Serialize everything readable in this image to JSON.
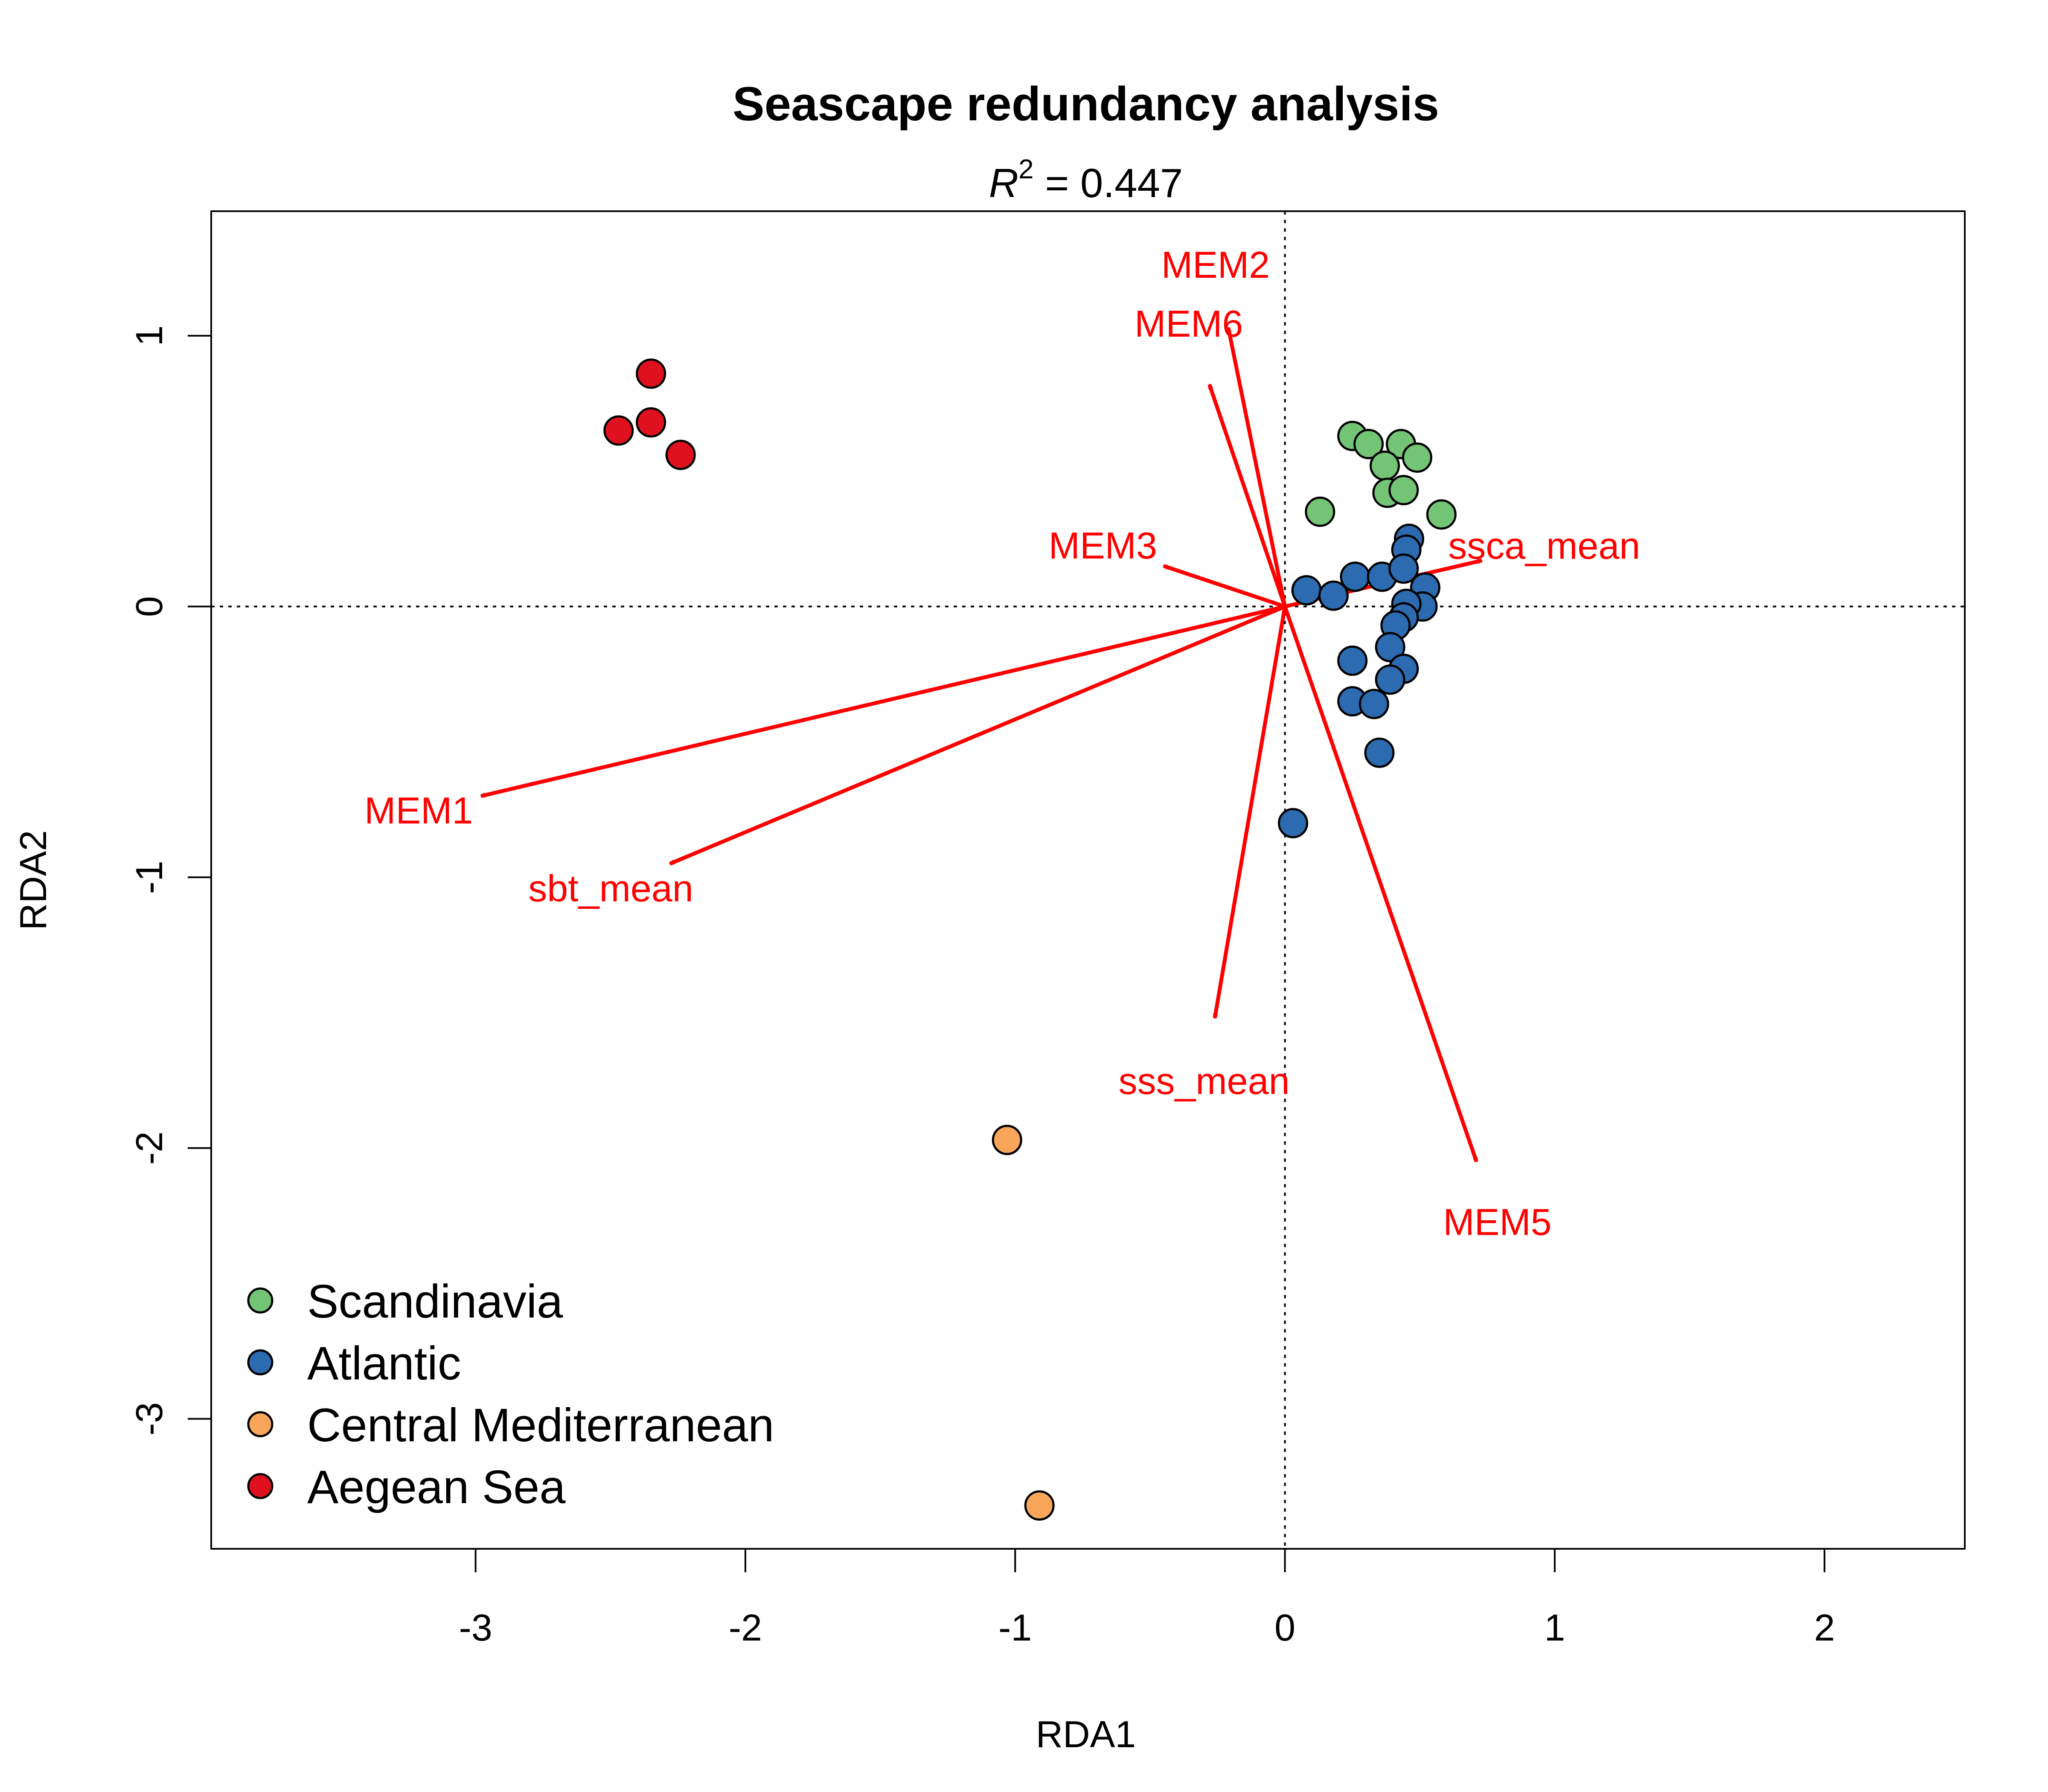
{
  "chart_data": {
    "type": "scatter",
    "title": "Seascape redundancy analysis",
    "subtitle": {
      "prefix": "R",
      "sup": "2",
      "suffix": " =  0.447"
    },
    "xlabel": "RDA1",
    "ylabel": "RDA2",
    "xlim": [
      -3.98,
      2.52
    ],
    "ylim": [
      -3.48,
      1.46
    ],
    "xticks": [
      -3,
      -2,
      -1,
      0,
      1,
      2
    ],
    "yticks": [
      1,
      0,
      -1,
      -2,
      -3
    ],
    "grid": false,
    "reference_lines": {
      "x": 0,
      "y": 0,
      "style": "dotted"
    },
    "arrow_color": "#ff0000",
    "arrows": [
      {
        "label": "MEM2",
        "x": -0.21,
        "y": 1.03
      },
      {
        "label": "MEM6",
        "x": -0.28,
        "y": 0.82
      },
      {
        "label": "MEM3",
        "x": -0.45,
        "y": 0.15
      },
      {
        "label": "ssca_mean",
        "x": 0.73,
        "y": 0.17
      },
      {
        "label": "MEM1",
        "x": -2.98,
        "y": -0.7
      },
      {
        "label": "sbt_mean",
        "x": -2.28,
        "y": -0.95
      },
      {
        "label": "sss_mean",
        "x": -0.26,
        "y": -1.52
      },
      {
        "label": "MEM5",
        "x": 0.71,
        "y": -2.05
      }
    ],
    "legend": {
      "placement": "bottom-left"
    },
    "series": [
      {
        "name": "Scandinavia",
        "color": "#74c476",
        "points": [
          [
            0.25,
            0.63
          ],
          [
            0.31,
            0.6
          ],
          [
            0.43,
            0.6
          ],
          [
            0.37,
            0.52
          ],
          [
            0.49,
            0.55
          ],
          [
            0.38,
            0.42
          ],
          [
            0.44,
            0.43
          ],
          [
            0.13,
            0.35
          ],
          [
            0.58,
            0.34
          ]
        ]
      },
      {
        "name": "Atlantic",
        "color": "#2c6bb0",
        "points": [
          [
            0.46,
            0.25
          ],
          [
            0.45,
            0.21
          ],
          [
            0.08,
            0.06
          ],
          [
            0.18,
            0.04
          ],
          [
            0.26,
            0.11
          ],
          [
            0.36,
            0.11
          ],
          [
            0.44,
            0.14
          ],
          [
            0.52,
            0.07
          ],
          [
            0.51,
            0.0
          ],
          [
            0.45,
            0.01
          ],
          [
            0.44,
            -0.04
          ],
          [
            0.41,
            -0.07
          ],
          [
            0.39,
            -0.15
          ],
          [
            0.25,
            -0.2
          ],
          [
            0.44,
            -0.23
          ],
          [
            0.39,
            -0.27
          ],
          [
            0.25,
            -0.35
          ],
          [
            0.33,
            -0.36
          ],
          [
            0.35,
            -0.54
          ],
          [
            0.03,
            -0.8
          ]
        ]
      },
      {
        "name": "Central Mediterranean",
        "color": "#f9a55a",
        "points": [
          [
            -1.03,
            -1.97
          ],
          [
            -0.91,
            -3.32
          ]
        ]
      },
      {
        "name": "Aegean Sea",
        "color": "#e0111f",
        "points": [
          [
            -2.35,
            0.86
          ],
          [
            -2.47,
            0.65
          ],
          [
            -2.35,
            0.68
          ],
          [
            -2.24,
            0.56
          ]
        ]
      }
    ]
  }
}
